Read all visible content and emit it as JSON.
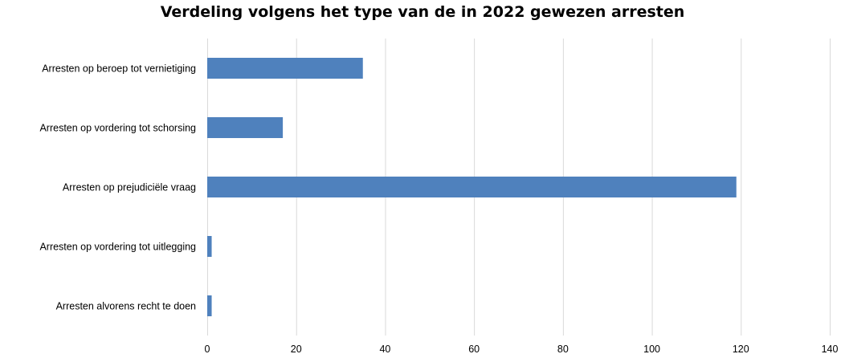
{
  "chart_data": {
    "type": "bar",
    "orientation": "horizontal",
    "title": "Verdeling volgens het type van de in 2022 gewezen arresten",
    "categories": [
      "Arresten op beroep tot vernietiging",
      "Arresten op vordering tot schorsing",
      "Arresten op prejudiciële vraag",
      "Arresten op vordering tot uitlegging",
      "Arresten alvorens recht te doen"
    ],
    "values": [
      35,
      17,
      119,
      1,
      1
    ],
    "xlabel": "",
    "ylabel": "",
    "xlim": [
      0,
      140
    ],
    "xticks": [
      "0",
      "20",
      "40",
      "60",
      "80",
      "100",
      "120",
      "140"
    ],
    "grid": "vertical",
    "legend": "none",
    "bar_color": "#4f81bd",
    "grid_color": "#d9d9d9"
  }
}
